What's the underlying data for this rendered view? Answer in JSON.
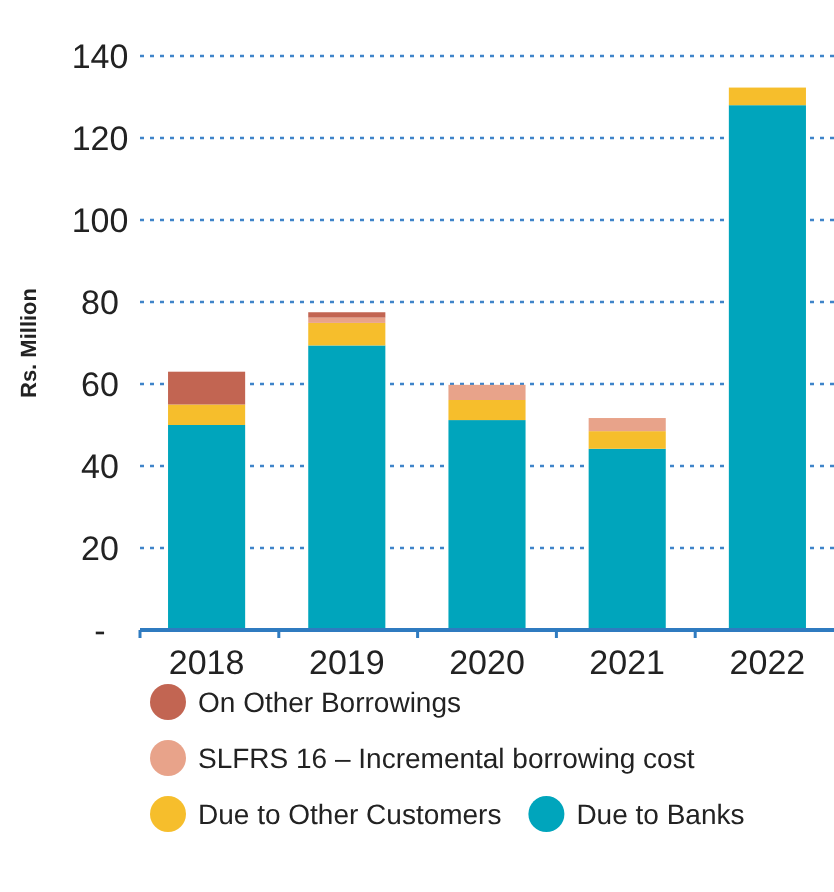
{
  "chart_data": {
    "type": "bar",
    "stacked": true,
    "ylabel": "Rs. Million",
    "categories": [
      "2018",
      "2019",
      "2020",
      "2021",
      "2022"
    ],
    "series": [
      {
        "name": "Due to Banks",
        "color": "#00a5bc",
        "values": [
          50,
          69.4,
          51.2,
          44.2,
          128
        ]
      },
      {
        "name": "Due to Other Customers",
        "color": "#f6be2c",
        "values": [
          5,
          5.5,
          4.9,
          4.3,
          4.3
        ]
      },
      {
        "name": "SLFRS 16 – Incremental borrowing cost",
        "color": "#e8a38a",
        "values": [
          null,
          1.3,
          3.7,
          3.2,
          null
        ]
      },
      {
        "name": "On Other Borrowings",
        "color": "#c26552",
        "values": [
          8,
          1.3,
          null,
          null,
          null
        ]
      }
    ],
    "ylim": [
      0,
      140
    ],
    "yticks": [
      {
        "value": 0,
        "label": "-"
      },
      20,
      40,
      60,
      80,
      100,
      120,
      140
    ],
    "grid": "y",
    "legend": "bottom"
  }
}
